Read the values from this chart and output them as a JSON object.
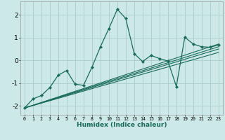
{
  "xlabel": "Humidex (Indice chaleur)",
  "xlim": [
    -0.5,
    23.5
  ],
  "ylim": [
    -2.4,
    2.6
  ],
  "xticks": [
    0,
    1,
    2,
    3,
    4,
    5,
    6,
    7,
    8,
    9,
    10,
    11,
    12,
    13,
    14,
    15,
    16,
    17,
    18,
    19,
    20,
    21,
    22,
    23
  ],
  "yticks": [
    -2,
    -1,
    0,
    1,
    2
  ],
  "bg_color": "#cce8e8",
  "grid_color": "#aacccc",
  "line_color": "#1a6b5a",
  "main_line": {
    "x": [
      0,
      1,
      2,
      3,
      4,
      5,
      6,
      7,
      8,
      9,
      10,
      11,
      12,
      13,
      14,
      15,
      16,
      17,
      18,
      19,
      20,
      21,
      22,
      23
    ],
    "y": [
      -2.1,
      -1.7,
      -1.55,
      -1.2,
      -0.65,
      -0.45,
      -1.05,
      -1.1,
      -0.3,
      0.6,
      1.4,
      2.25,
      1.85,
      0.3,
      -0.05,
      0.22,
      0.08,
      -0.03,
      -1.15,
      1.02,
      0.72,
      0.6,
      0.58,
      0.68
    ]
  },
  "trend_lines": [
    {
      "x": [
        0,
        23
      ],
      "y": [
        -2.1,
        0.35
      ]
    },
    {
      "x": [
        0,
        23
      ],
      "y": [
        -2.1,
        0.5
      ]
    },
    {
      "x": [
        0,
        23
      ],
      "y": [
        -2.1,
        0.6
      ]
    },
    {
      "x": [
        0,
        23
      ],
      "y": [
        -2.1,
        0.72
      ]
    }
  ]
}
